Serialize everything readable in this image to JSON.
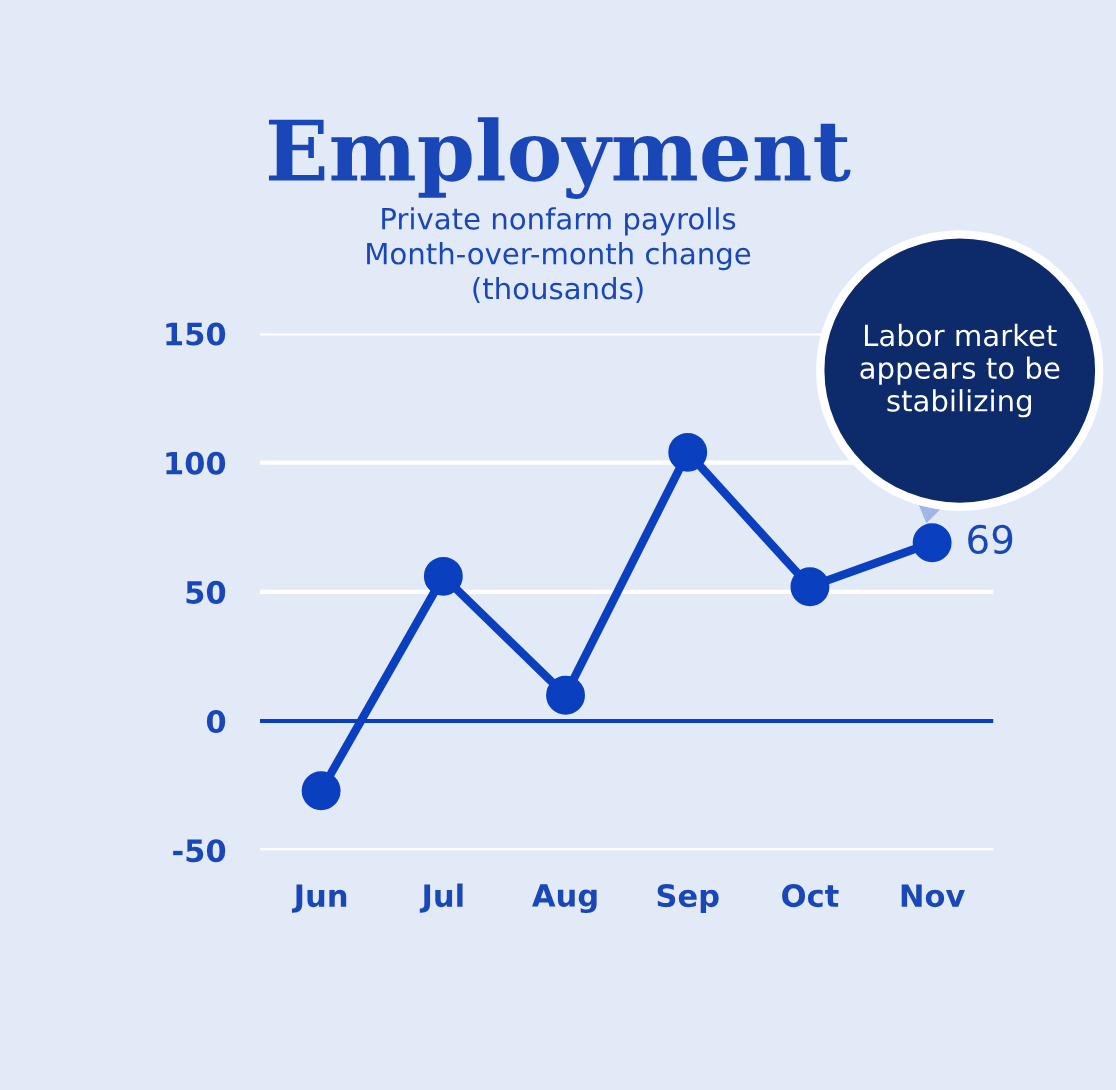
{
  "chart_data": {
    "type": "line",
    "title": "Employment",
    "subtitle": "Private nonfarm payrolls\nMonth-over-month change\n(thousands)",
    "categories": [
      "Jun",
      "Jul",
      "Aug",
      "Sep",
      "Oct",
      "Nov"
    ],
    "series": [
      {
        "color": "#0a3fbf",
        "values": [
          -27,
          56,
          10,
          104,
          52,
          69
        ],
        "value_labels": [
          null,
          null,
          null,
          null,
          null,
          "69"
        ]
      }
    ],
    "ylim": [
      -50,
      150
    ],
    "yticks": [
      -50,
      0,
      50,
      100,
      150
    ],
    "grid": "y",
    "marker": "circle",
    "line_style": "solid",
    "ref_lines": [
      {
        "axis": "y",
        "value": 0,
        "color": "#0a3fbf"
      }
    ],
    "annotations": [
      "Labor market appears to be stabilizing"
    ]
  }
}
